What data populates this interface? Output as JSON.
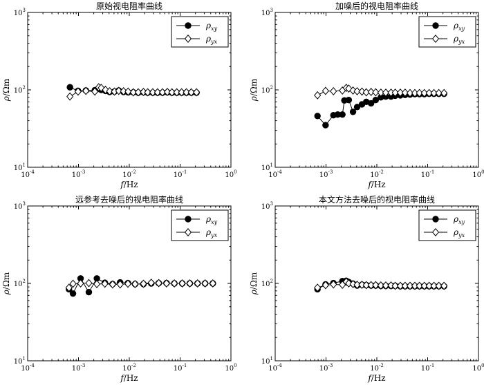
{
  "chart_data": [
    {
      "type": "scatter",
      "title": "原始视电阻率曲线",
      "xlabel": "f/Hz",
      "ylabel": "ρ/Ωm",
      "xscale": "log",
      "yscale": "log",
      "xlim": [
        0.0001,
        1
      ],
      "ylim": [
        10,
        1000
      ],
      "xticks": [
        "10-4",
        "10-3",
        "10-2",
        "10-1",
        "100"
      ],
      "yticks": [
        "101",
        "102",
        "103"
      ],
      "legend_placement": "top-right",
      "series": [
        {
          "name": "ρxy",
          "marker": "filled-circle",
          "color": "#000000",
          "points": [
            [
              0.00068,
              108
            ],
            [
              0.00098,
              97
            ],
            [
              0.0014,
              98
            ],
            [
              0.0021,
              99
            ],
            [
              0.0025,
              103
            ],
            [
              0.0028,
              100
            ],
            [
              0.0034,
              97
            ],
            [
              0.0041,
              94
            ],
            [
              0.0051,
              95
            ],
            [
              0.0062,
              98
            ],
            [
              0.0077,
              94
            ],
            [
              0.0095,
              93
            ],
            [
              0.012,
              93
            ],
            [
              0.015,
              92
            ],
            [
              0.019,
              93
            ],
            [
              0.023,
              92
            ],
            [
              0.029,
              92
            ],
            [
              0.036,
              92
            ],
            [
              0.045,
              92
            ],
            [
              0.056,
              93
            ],
            [
              0.069,
              92
            ],
            [
              0.086,
              92
            ],
            [
              0.107,
              92
            ],
            [
              0.133,
              92
            ],
            [
              0.166,
              92
            ],
            [
              0.21,
              92
            ]
          ]
        },
        {
          "name": "ρyx",
          "marker": "open-diamond",
          "color": "#000000",
          "points": [
            [
              0.00068,
              82
            ],
            [
              0.00098,
              95
            ],
            [
              0.0014,
              97
            ],
            [
              0.0021,
              95
            ],
            [
              0.0025,
              108
            ],
            [
              0.0028,
              106
            ],
            [
              0.0034,
              100
            ],
            [
              0.0041,
              96
            ],
            [
              0.0051,
              95
            ],
            [
              0.0062,
              97
            ],
            [
              0.0077,
              96
            ],
            [
              0.0095,
              95
            ],
            [
              0.012,
              93
            ],
            [
              0.015,
              93
            ],
            [
              0.019,
              94
            ],
            [
              0.023,
              93
            ],
            [
              0.029,
              93
            ],
            [
              0.036,
              93
            ],
            [
              0.045,
              93
            ],
            [
              0.056,
              94
            ],
            [
              0.069,
              93
            ],
            [
              0.086,
              93
            ],
            [
              0.107,
              93
            ],
            [
              0.133,
              93
            ],
            [
              0.166,
              93
            ],
            [
              0.21,
              93
            ]
          ]
        }
      ]
    },
    {
      "type": "scatter",
      "title": "加噪后的视电阻率曲线",
      "xlabel": "f/Hz",
      "ylabel": "ρ/Ωm",
      "xscale": "log",
      "yscale": "log",
      "xlim": [
        0.0001,
        1
      ],
      "ylim": [
        10,
        1000
      ],
      "xticks": [
        "10-4",
        "10-3",
        "10-2",
        "10-1",
        "100"
      ],
      "yticks": [
        "101",
        "102",
        "103"
      ],
      "legend_placement": "top-right",
      "series": [
        {
          "name": "ρxy",
          "marker": "filled-circle",
          "color": "#000000",
          "points": [
            [
              0.00068,
              46
            ],
            [
              0.00098,
              35
            ],
            [
              0.0014,
              47
            ],
            [
              0.0017,
              48
            ],
            [
              0.0021,
              48
            ],
            [
              0.0023,
              73
            ],
            [
              0.0028,
              74
            ],
            [
              0.0034,
              52
            ],
            [
              0.0041,
              60
            ],
            [
              0.0051,
              65
            ],
            [
              0.0062,
              70
            ],
            [
              0.0077,
              67
            ],
            [
              0.0095,
              74
            ],
            [
              0.012,
              80
            ],
            [
              0.015,
              82
            ],
            [
              0.019,
              82
            ],
            [
              0.023,
              84
            ],
            [
              0.029,
              85
            ],
            [
              0.036,
              86
            ],
            [
              0.045,
              87
            ],
            [
              0.056,
              88
            ],
            [
              0.069,
              88
            ],
            [
              0.086,
              88
            ],
            [
              0.107,
              89
            ],
            [
              0.133,
              89
            ],
            [
              0.166,
              89
            ],
            [
              0.21,
              89
            ]
          ]
        },
        {
          "name": "ρyx",
          "marker": "open-diamond",
          "color": "#000000",
          "points": [
            [
              0.00068,
              85
            ],
            [
              0.00098,
              97
            ],
            [
              0.0014,
              96
            ],
            [
              0.0021,
              98
            ],
            [
              0.0025,
              106
            ],
            [
              0.0028,
              104
            ],
            [
              0.0034,
              98
            ],
            [
              0.0041,
              96
            ],
            [
              0.0051,
              95
            ],
            [
              0.0062,
              93
            ],
            [
              0.0077,
              94
            ],
            [
              0.0095,
              93
            ],
            [
              0.012,
              92
            ],
            [
              0.015,
              92
            ],
            [
              0.019,
              92
            ],
            [
              0.023,
              92
            ],
            [
              0.029,
              92
            ],
            [
              0.036,
              92
            ],
            [
              0.045,
              91
            ],
            [
              0.056,
              91
            ],
            [
              0.069,
              91
            ],
            [
              0.086,
              91
            ],
            [
              0.107,
              91
            ],
            [
              0.133,
              91
            ],
            [
              0.166,
              91
            ],
            [
              0.21,
              91
            ]
          ]
        }
      ]
    },
    {
      "type": "scatter",
      "title": "远参考去噪后的视电阻率曲线",
      "xlabel": "f/Hz",
      "ylabel": "ρ/Ωm",
      "xscale": "log",
      "yscale": "log",
      "xlim": [
        0.0001,
        1
      ],
      "ylim": [
        10,
        1000
      ],
      "xticks": [
        "10-4",
        "10-3",
        "10-2",
        "10-1",
        "100"
      ],
      "yticks": [
        "101",
        "102",
        "103"
      ],
      "legend_placement": "top-right",
      "series": [
        {
          "name": "ρxy",
          "marker": "filled-circle",
          "color": "#000000",
          "points": [
            [
              0.00065,
              84
            ],
            [
              0.00078,
              74
            ],
            [
              0.0011,
              116
            ],
            [
              0.0016,
              77
            ],
            [
              0.0023,
              116
            ],
            [
              0.0033,
              102
            ],
            [
              0.0047,
              98
            ],
            [
              0.0066,
              103
            ],
            [
              0.0094,
              101
            ],
            [
              0.013,
              98
            ],
            [
              0.019,
              98
            ],
            [
              0.027,
              100
            ],
            [
              0.038,
              101
            ],
            [
              0.054,
              101
            ],
            [
              0.077,
              100
            ],
            [
              0.11,
              100
            ],
            [
              0.155,
              100
            ],
            [
              0.22,
              100
            ],
            [
              0.31,
              100
            ],
            [
              0.44,
              100
            ]
          ]
        },
        {
          "name": "ρyx",
          "marker": "open-diamond",
          "color": "#000000",
          "points": [
            [
              0.00065,
              88
            ],
            [
              0.00078,
              99
            ],
            [
              0.0011,
              100
            ],
            [
              0.0016,
              101
            ],
            [
              0.0023,
              98
            ],
            [
              0.0033,
              99
            ],
            [
              0.0047,
              97
            ],
            [
              0.0066,
              97
            ],
            [
              0.0094,
              99
            ],
            [
              0.013,
              98
            ],
            [
              0.019,
              99
            ],
            [
              0.027,
              102
            ],
            [
              0.038,
              101
            ],
            [
              0.054,
              100
            ],
            [
              0.077,
              100
            ],
            [
              0.11,
              100
            ],
            [
              0.155,
              100
            ],
            [
              0.22,
              100
            ],
            [
              0.31,
              100
            ],
            [
              0.44,
              100
            ]
          ]
        }
      ]
    },
    {
      "type": "scatter",
      "title": "本文方法去噪后的视电阻率曲线",
      "xlabel": "f/Hz",
      "ylabel": "ρ/Ωm",
      "xscale": "log",
      "yscale": "log",
      "xlim": [
        0.0001,
        1
      ],
      "ylim": [
        10,
        1000
      ],
      "xticks": [
        "10-4",
        "10-3",
        "10-2",
        "10-1",
        "100"
      ],
      "yticks": [
        "101",
        "102",
        "103"
      ],
      "legend_placement": "top-right",
      "series": [
        {
          "name": "ρxy",
          "marker": "filled-circle",
          "color": "#000000",
          "points": [
            [
              0.00068,
              84
            ],
            [
              0.00098,
              97
            ],
            [
              0.0014,
              101
            ],
            [
              0.0021,
              107
            ],
            [
              0.0025,
              108
            ],
            [
              0.0028,
              104
            ],
            [
              0.0034,
              99
            ],
            [
              0.0041,
              94
            ],
            [
              0.0051,
              96
            ],
            [
              0.0062,
              95
            ],
            [
              0.0077,
              94
            ],
            [
              0.0095,
              94
            ],
            [
              0.012,
              93
            ],
            [
              0.015,
              93
            ],
            [
              0.019,
              93
            ],
            [
              0.023,
              93
            ],
            [
              0.029,
              92
            ],
            [
              0.036,
              92
            ],
            [
              0.045,
              92
            ],
            [
              0.056,
              92
            ],
            [
              0.069,
              92
            ],
            [
              0.086,
              92
            ],
            [
              0.107,
              92
            ],
            [
              0.133,
              92
            ],
            [
              0.166,
              92
            ],
            [
              0.21,
              92
            ]
          ]
        },
        {
          "name": "ρyx",
          "marker": "open-diamond",
          "color": "#000000",
          "points": [
            [
              0.00068,
              88
            ],
            [
              0.00098,
              95
            ],
            [
              0.0014,
              97
            ],
            [
              0.0021,
              96
            ],
            [
              0.0025,
              105
            ],
            [
              0.0028,
              100
            ],
            [
              0.0034,
              98
            ],
            [
              0.0041,
              96
            ],
            [
              0.0051,
              96
            ],
            [
              0.0062,
              95
            ],
            [
              0.0077,
              95
            ],
            [
              0.0095,
              95
            ],
            [
              0.012,
              94
            ],
            [
              0.015,
              94
            ],
            [
              0.019,
              94
            ],
            [
              0.023,
              93
            ],
            [
              0.029,
              93
            ],
            [
              0.036,
              93
            ],
            [
              0.045,
              93
            ],
            [
              0.056,
              93
            ],
            [
              0.069,
              93
            ],
            [
              0.086,
              93
            ],
            [
              0.107,
              93
            ],
            [
              0.133,
              93
            ],
            [
              0.166,
              93
            ],
            [
              0.21,
              93
            ]
          ]
        }
      ]
    }
  ]
}
